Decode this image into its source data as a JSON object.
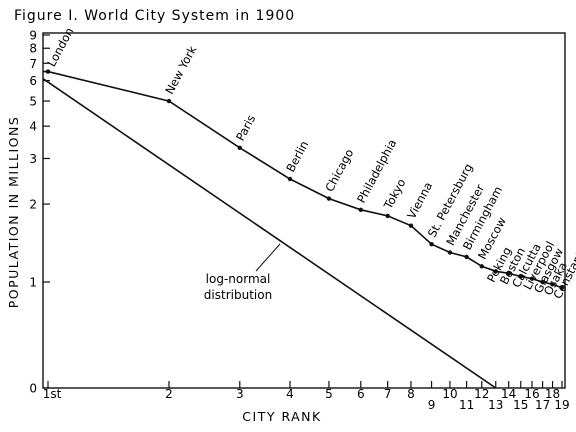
{
  "chart_data": {
    "type": "line",
    "title": "Figure I. World City System in 1900",
    "xlabel": "CITY RANK",
    "ylabel": "POPULATION IN MILLIONS",
    "x_scale": "log",
    "y_scale": "log",
    "xlim": [
      1,
      19
    ],
    "ylim": [
      0,
      9
    ],
    "x_ticks": [
      "1st",
      "2",
      "3",
      "4",
      "5",
      "6",
      "7",
      "8",
      "9",
      "10",
      "11",
      "12",
      "13",
      "14",
      "15",
      "16",
      "17",
      "18",
      "19"
    ],
    "y_ticks": [
      "0",
      "1",
      "2",
      "3",
      "4",
      "5",
      "6",
      "7",
      "8",
      "9"
    ],
    "series": [
      {
        "points": [
          {
            "rank": 1,
            "city": "London",
            "population": 6.5
          },
          {
            "rank": 2,
            "city": "New York",
            "population": 5.0
          },
          {
            "rank": 3,
            "city": "Paris",
            "population": 3.3
          },
          {
            "rank": 4,
            "city": "Berlin",
            "population": 2.5
          },
          {
            "rank": 5,
            "city": "Chicago",
            "population": 2.1
          },
          {
            "rank": 6,
            "city": "Philadelphia",
            "population": 1.9
          },
          {
            "rank": 7,
            "city": "Tokyo",
            "population": 1.8
          },
          {
            "rank": 8,
            "city": "Vienna",
            "population": 1.65
          },
          {
            "rank": 9,
            "city": "St. Petersburg",
            "population": 1.4
          },
          {
            "rank": 10,
            "city": "Manchester",
            "population": 1.3
          },
          {
            "rank": 11,
            "city": "Birmingham",
            "population": 1.25
          },
          {
            "rank": 12,
            "city": "Moscow",
            "population": 1.15
          },
          {
            "rank": 13,
            "city": "Peking",
            "population": 1.1
          },
          {
            "rank": 14,
            "city": "Boston",
            "population": 1.08
          },
          {
            "rank": 15,
            "city": "Calcutta",
            "population": 1.05
          },
          {
            "rank": 16,
            "city": "Liverpool",
            "population": 1.03
          },
          {
            "rank": 17,
            "city": "Glasgow",
            "population": 1.0
          },
          {
            "rank": 18,
            "city": "Osaka",
            "population": 0.98
          },
          {
            "rank": 19,
            "city": "Constantinople",
            "population": 0.95
          }
        ]
      },
      {
        "name": "log-normal distribution",
        "points": [
          {
            "rank": 1,
            "population": 6.1
          },
          {
            "rank": 13,
            "population": 0
          }
        ]
      }
    ],
    "annotation": [
      "log-normal",
      "distribution"
    ]
  }
}
